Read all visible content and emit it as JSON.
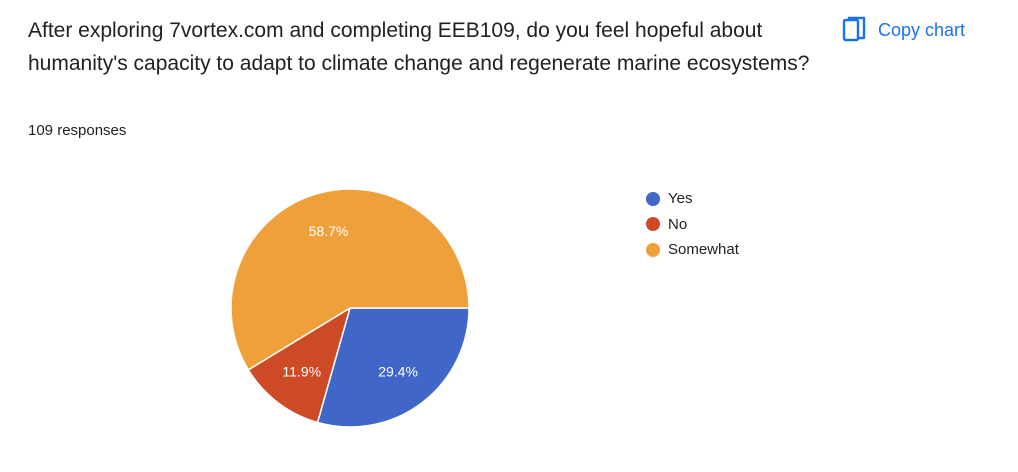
{
  "question": "After exploring 7vortex.com and completing EEB109, do you feel hopeful about humanity's capacity to adapt to climate change and regenerate marine ecosystems?",
  "responses_label": "109 responses",
  "copy_chart": {
    "label": "Copy chart",
    "icon": "copy-icon",
    "color": "#1a73e8"
  },
  "chart_data": {
    "type": "pie",
    "labels": [
      "Yes",
      "No",
      "Somewhat"
    ],
    "values": [
      29.4,
      11.9,
      58.7
    ],
    "value_labels": [
      "29.4%",
      "11.9%",
      "58.7%"
    ],
    "colors": [
      "#4066c8",
      "#cd4a27",
      "#f0a03a"
    ],
    "legend_position": "right"
  }
}
